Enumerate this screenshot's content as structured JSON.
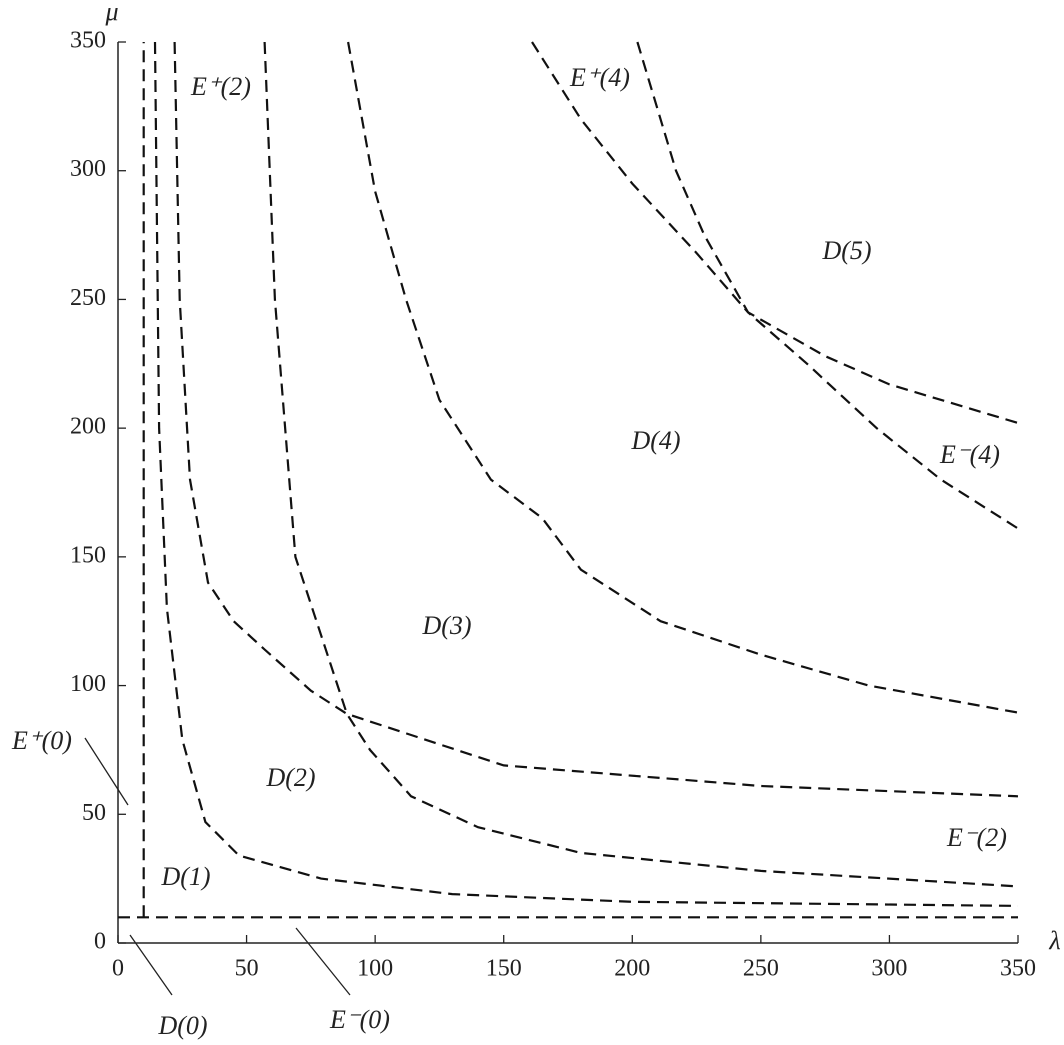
{
  "chart_data": {
    "type": "line",
    "x_label": "λ",
    "y_label": "μ",
    "xlim": [
      0,
      350
    ],
    "ylim": [
      0,
      350
    ],
    "xticks": [
      0,
      50,
      100,
      150,
      200,
      250,
      300,
      350
    ],
    "yticks": [
      0,
      50,
      100,
      150,
      200,
      250,
      300,
      350
    ],
    "line_style": "dashed",
    "series": [
      {
        "color": "#111111",
        "x": [
          0,
          350
        ],
        "values": [
          10,
          10
        ]
      },
      {
        "color": "#111111",
        "x": [
          10,
          10
        ],
        "values": [
          10,
          350
        ]
      },
      {
        "color": "#111111",
        "x": [
          14.4,
          16,
          19,
          25,
          34,
          47,
          79,
          130,
          200,
          350
        ],
        "values": [
          350,
          200,
          130,
          79,
          47,
          34,
          25,
          19,
          16,
          14.4
        ]
      },
      {
        "color": "#111111",
        "x": [
          22,
          24,
          28,
          35,
          45,
          57,
          75,
          89,
          150,
          250,
          350
        ],
        "values": [
          350,
          250,
          180,
          140,
          125,
          114,
          98,
          89,
          69,
          61,
          57
        ]
      },
      {
        "color": "#111111",
        "x": [
          57,
          61,
          69,
          89,
          98,
          114,
          140,
          180,
          250,
          350
        ],
        "values": [
          350,
          250,
          150,
          89,
          75,
          57,
          45,
          35,
          28,
          22
        ]
      },
      {
        "color": "#111111",
        "x": [
          89.5,
          100,
          112,
          125,
          145,
          165,
          180,
          211,
          250,
          292,
          350
        ],
        "values": [
          350,
          292,
          250,
          211,
          180,
          165,
          145,
          125,
          112,
          100,
          89.5
        ]
      },
      {
        "color": "#111111",
        "x": [
          161,
          180,
          200,
          225,
          245,
          275,
          300,
          350
        ],
        "values": [
          350,
          320,
          295,
          268,
          245,
          228,
          217,
          202
        ]
      },
      {
        "color": "#111111",
        "x": [
          202,
          217,
          228,
          245,
          268,
          295,
          320,
          350
        ],
        "values": [
          350,
          300,
          275,
          245,
          225,
          200,
          180,
          161
        ]
      }
    ],
    "annotations": [
      "D(5)",
      "D(4)",
      "D(3)",
      "D(2)",
      "D(1)",
      "D(0)",
      "E⁻(0)",
      "E⁺(0)",
      "E⁺(2)",
      "E⁺(4)",
      "E⁻(4)",
      "E⁻(2)"
    ]
  }
}
